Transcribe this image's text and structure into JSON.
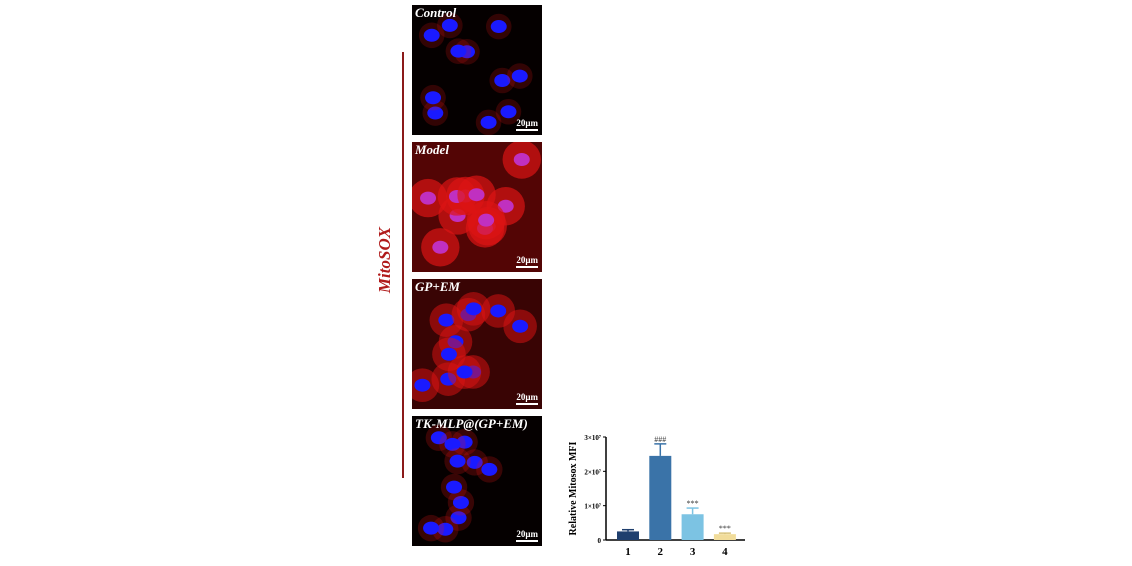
{
  "figure": {
    "stain_label": "MitoSOX",
    "scale_bar": "20μm",
    "panels": [
      {
        "label": "Control",
        "red_level": 0.1
      },
      {
        "label": "Model",
        "red_level": 0.9
      },
      {
        "label": "GP+EM",
        "red_level": 0.6
      },
      {
        "label": "TK-MLP@(GP+EM)",
        "red_level": 0.15
      }
    ]
  },
  "chart_data": {
    "type": "bar",
    "categories": [
      "1",
      "2",
      "3",
      "4"
    ],
    "values": [
      2500000,
      24500000,
      7500000,
      1700000
    ],
    "errors": [
      500000,
      3500000,
      1800000,
      300000
    ],
    "annotations": [
      "",
      "###",
      "***",
      "***"
    ],
    "colors": [
      "#1f3f6e",
      "#3a73a8",
      "#7cc3e3",
      "#f1dc9a"
    ],
    "ylabel": "Relative Mitosox MFI",
    "yticks": [
      "0",
      "1×10⁷",
      "2×10⁷",
      "3×10⁷"
    ],
    "ylim": [
      0,
      30000000
    ]
  }
}
